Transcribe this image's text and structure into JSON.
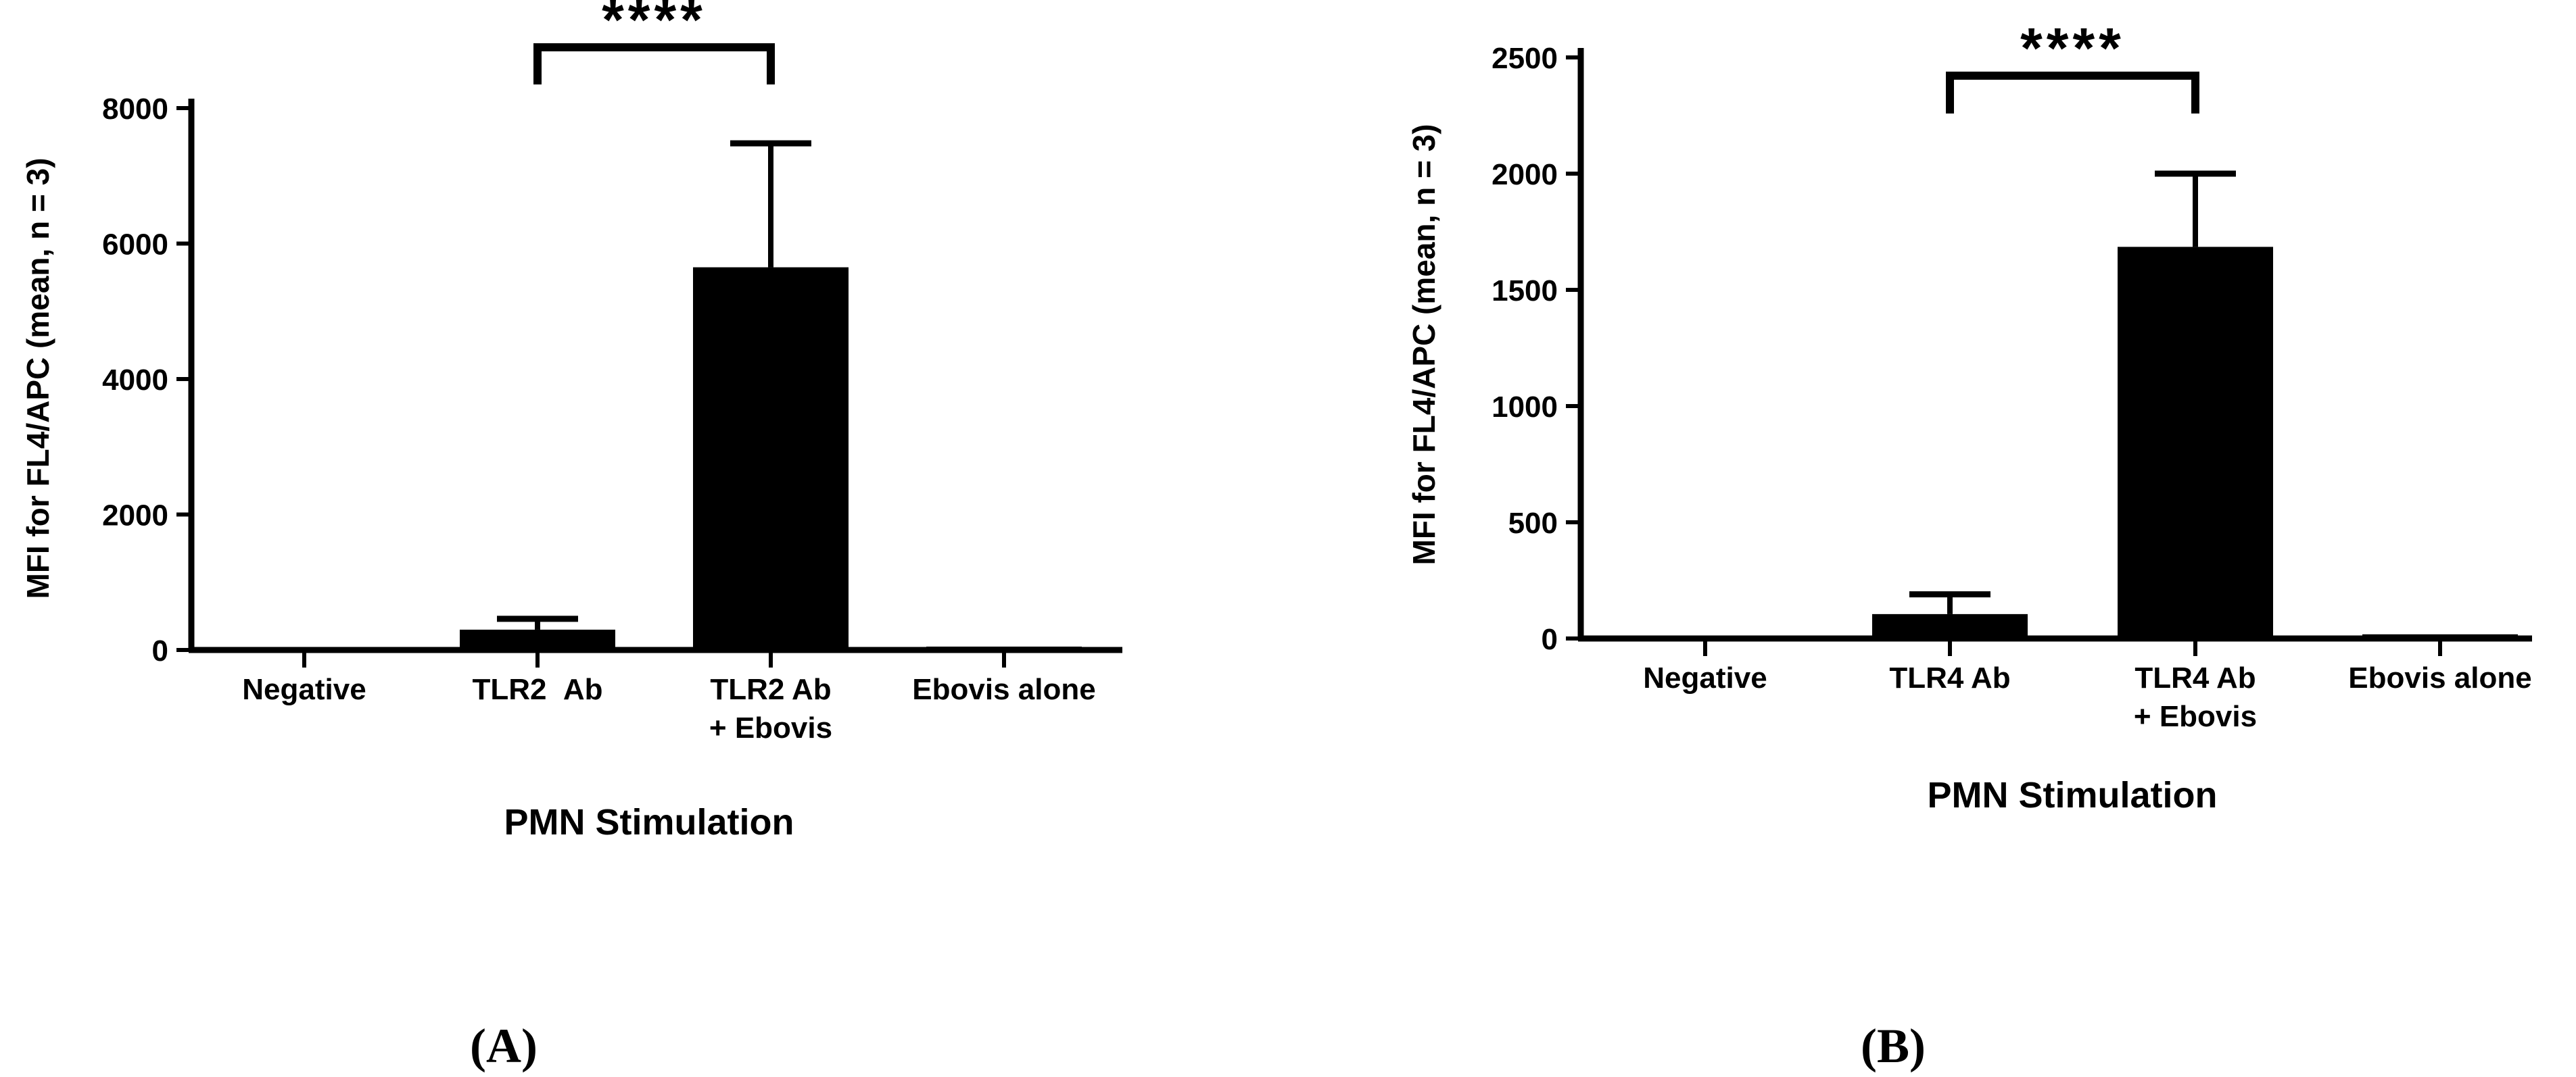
{
  "figure": {
    "background": "#ffffff",
    "ink_color": "#000000",
    "panels": [
      {
        "letter": "(A)"
      },
      {
        "letter": "(B)"
      }
    ]
  },
  "chart_data": [
    {
      "type": "bar",
      "panel_letter": "(A)",
      "title": "",
      "categories": [
        "Negative",
        "TLR2  Ab",
        "TLR2 Ab\n+ Ebovis",
        "Ebovis alone"
      ],
      "values": [
        0,
        300,
        5650,
        50
      ],
      "error_top": [
        null,
        460,
        7480,
        null
      ],
      "bar_color": "#000000",
      "xlabel": "PMN Stimulation",
      "ylabel": "MFI for FL4/APC (mean, n = 3)",
      "ylim": [
        0,
        8000
      ],
      "yticks": [
        0,
        2000,
        4000,
        6000,
        8000
      ],
      "grid": false,
      "legend": null,
      "significance": {
        "label": "****",
        "from_index": 1,
        "to_index": 2
      }
    },
    {
      "type": "bar",
      "panel_letter": "(B)",
      "title": "",
      "categories": [
        "Negative",
        "TLR4 Ab",
        "TLR4 Ab\n+ Ebovis",
        "Ebovis alone"
      ],
      "values": [
        0,
        105,
        1685,
        18
      ],
      "error_top": [
        null,
        190,
        2000,
        null
      ],
      "bar_color": "#000000",
      "xlabel": "PMN Stimulation",
      "ylabel": "MFI for FL4/APC (mean, n = 3)",
      "ylim": [
        0,
        2500
      ],
      "yticks": [
        0,
        500,
        1000,
        1500,
        2000,
        2500
      ],
      "grid": false,
      "legend": null,
      "significance": {
        "label": "****",
        "from_index": 1,
        "to_index": 2
      }
    }
  ]
}
